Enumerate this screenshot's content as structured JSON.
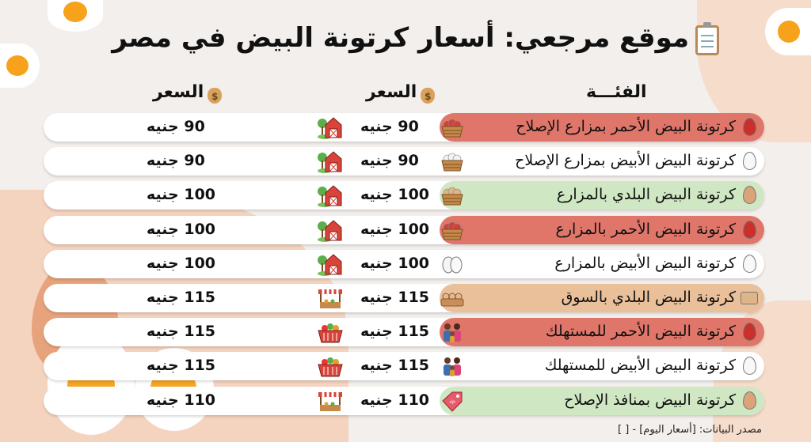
{
  "title": "موقع مرجعي: أسعار كرتونة البيض في مصر",
  "title_icon": "clipboard-icon",
  "headers": {
    "category": "الفئـــة",
    "price_1": "السعر",
    "price_2": "السعر",
    "price_icon": "money-bag-icon"
  },
  "colors": {
    "red": "#e0766a",
    "white": "#ffffff",
    "green": "#cfe8c3",
    "tan": "#e9c09a"
  },
  "rows": [
    {
      "category": "كرتونة البيض الأحمر بمزارع الإصلاح",
      "egg": "red",
      "bg": "red",
      "price_1": "90 جنيه",
      "mid_icon": "red-egg-basket-icon",
      "left_icon": "barn-icon",
      "price_2": "90 جنيه"
    },
    {
      "category": "كرتونة البيض الأبيض بمزارع الإصلاح",
      "egg": "white",
      "bg": "white",
      "price_1": "90 جنيه",
      "mid_icon": "white-egg-basket-icon",
      "left_icon": "barn-icon",
      "price_2": "90 جنيه"
    },
    {
      "category": "كرتونة البيض البلدي بالمزارع",
      "egg": "brown",
      "bg": "green",
      "price_1": "100 جنيه",
      "mid_icon": "brown-egg-basket-icon",
      "left_icon": "barn-icon",
      "price_2": "100 جنيه"
    },
    {
      "category": "كرتونة البيض الأحمر بالمزارع",
      "egg": "red",
      "bg": "red",
      "price_1": "100 جنيه",
      "mid_icon": "red-egg-basket-icon",
      "left_icon": "barn-icon",
      "price_2": "100 جنيه"
    },
    {
      "category": "كرتونة البيض الأبيض بالمزارع",
      "egg": "white",
      "bg": "white",
      "price_1": "100 جنيه",
      "mid_icon": "white-eggs-icon",
      "left_icon": "barn-icon",
      "price_2": "100 جنيه"
    },
    {
      "category": "كرتونة البيض البلدي بالسوق",
      "egg": "carton",
      "bg": "tan",
      "price_1": "115 جنيه",
      "mid_icon": "egg-carton-icon",
      "left_icon": "market-stall-icon",
      "price_2": "115 جنيه"
    },
    {
      "category": "كرتونة البيض الأحمر للمستهلك",
      "egg": "red",
      "bg": "red",
      "price_1": "115 جنيه",
      "mid_icon": "family-icon",
      "left_icon": "shopping-basket-icon",
      "price_2": "115 جنيه"
    },
    {
      "category": "كرتونة البيض الأبيض للمستهلك",
      "egg": "white",
      "bg": "white",
      "price_1": "115 جنيه",
      "mid_icon": "family-icon",
      "left_icon": "shopping-basket-icon",
      "price_2": "115 جنيه"
    },
    {
      "category": "كرتونة البيض بمنافذ الإصلاح",
      "egg": "brown",
      "bg": "green",
      "price_1": "110 جنيه",
      "mid_icon": "price-tag-icon",
      "left_icon": "market-stall-icon",
      "price_2": "110 جنيه"
    }
  ],
  "footer": "مصدر البيانات: [أسعار اليوم] - [ ]"
}
